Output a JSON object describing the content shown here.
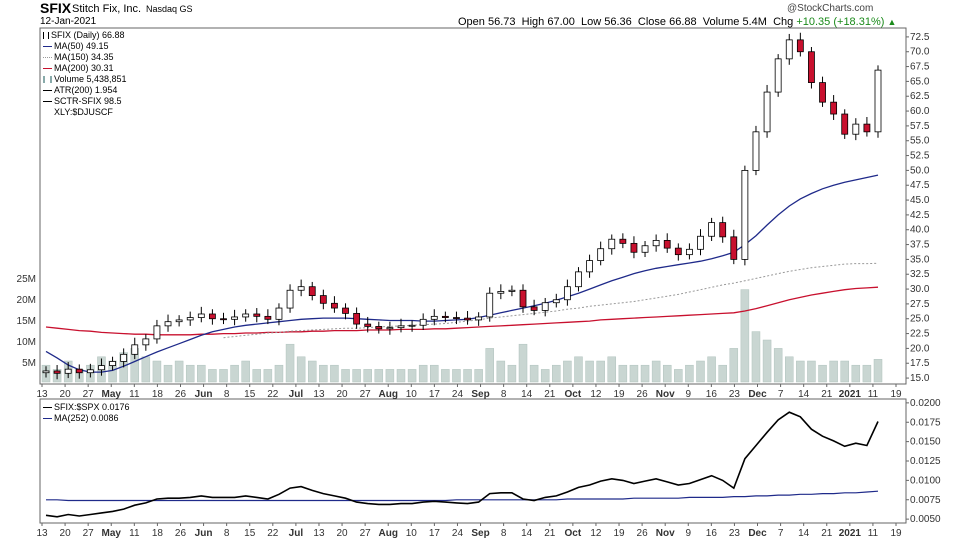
{
  "header": {
    "symbol": "SFIX",
    "company": "Stitch Fix, Inc.",
    "exchange": "Nasdaq GS",
    "date": "12-Jan-2021",
    "watermark": "@StockCharts.com",
    "open_label": "Open",
    "open": "56.73",
    "high_label": "High",
    "high": "67.00",
    "low_label": "Low",
    "low": "56.36",
    "close_label": "Close",
    "close": "66.88",
    "volume_label": "Volume",
    "volume": "5.4M",
    "chg_label": "Chg",
    "chg": "+10.35 (+18.31%)",
    "up_marker": "▲"
  },
  "legend_main": [
    {
      "text": "SFIX (Daily) 66.88",
      "color": "#000000",
      "style": "candle"
    },
    {
      "text": "MA(50) 49.15",
      "color": "#1f2a8a",
      "style": "solid"
    },
    {
      "text": "MA(150) 34.35",
      "color": "#999999",
      "style": "dotted"
    },
    {
      "text": "MA(200) 30.31",
      "color": "#c8102e",
      "style": "solid"
    },
    {
      "text": "Volume 5,438,851",
      "color": "#8aa",
      "style": "volume"
    },
    {
      "text": "ATR(200) 1.954",
      "color": "#000000",
      "style": "solid"
    },
    {
      "text": "SCTR-SFIX 98.5",
      "color": "#000000",
      "style": "solid"
    },
    {
      "text": "XLY:$DJUSCF",
      "color": "#000000",
      "style": "none"
    }
  ],
  "legend_lower": [
    {
      "text": "SFIX:$SPX 0.0176",
      "color": "#000000",
      "style": "solid"
    },
    {
      "text": "MA(252) 0.0086",
      "color": "#1f2a8a",
      "style": "solid"
    }
  ],
  "chart_data": [
    {
      "type": "candlestick",
      "title": "SFIX (Daily)",
      "ylim": [
        14,
        74
      ],
      "y_ticks": [
        "72.5",
        "70.0",
        "67.5",
        "65.0",
        "62.5",
        "60.0",
        "57.5",
        "55.0",
        "52.5",
        "50.0",
        "47.5",
        "45.0",
        "42.5",
        "40.0",
        "37.5",
        "35.0",
        "32.5",
        "30.0",
        "27.5",
        "25.0",
        "22.5",
        "20.0",
        "17.5",
        "15.0"
      ],
      "volume_ticks": [
        "25M",
        "20M",
        "15M",
        "10M",
        "5M"
      ],
      "x_ticks": [
        "13",
        "20",
        "27",
        "May",
        "11",
        "18",
        "26",
        "Jun",
        "8",
        "15",
        "22",
        "Jul",
        "13",
        "20",
        "27",
        "Aug",
        "10",
        "17",
        "24",
        "Sep",
        "8",
        "14",
        "21",
        "Oct",
        "12",
        "19",
        "26",
        "Nov",
        "9",
        "16",
        "23",
        "Dec",
        "7",
        "14",
        "21",
        "2021",
        "11",
        "19"
      ],
      "series": [
        {
          "name": "SFIX",
          "values": [
            16.2,
            15.8,
            16.5,
            15.9,
            16.4,
            17.1,
            17.8,
            19.0,
            20.6,
            21.6,
            23.8,
            24.5,
            24.8,
            25.2,
            25.8,
            25.0,
            24.9,
            25.3,
            25.8,
            25.4,
            24.9,
            26.8,
            29.8,
            30.4,
            28.9,
            27.6,
            26.8,
            25.9,
            24.1,
            23.7,
            23.3,
            23.5,
            23.8,
            23.9,
            24.9,
            25.4,
            25.2,
            25.1,
            24.8,
            25.3,
            29.3,
            29.6,
            29.8,
            27.0,
            26.4,
            27.7,
            28.2,
            30.4,
            32.9,
            34.8,
            36.8,
            38.4,
            37.7,
            36.2,
            37.3,
            38.2,
            36.9,
            35.8,
            36.7,
            38.9,
            41.2,
            38.8,
            35.0,
            50.0,
            56.5,
            63.2,
            68.8,
            72.0,
            70.0,
            64.8,
            61.5,
            59.5,
            56.1,
            57.8,
            56.5,
            66.9
          ]
        },
        {
          "name": "MA(50)",
          "values": [
            19.5,
            18.4,
            17.2,
            16.4,
            16.0,
            16.0,
            16.3,
            17.0,
            17.8,
            18.6,
            19.4,
            20.1,
            20.8,
            21.5,
            22.2,
            22.8,
            23.2,
            23.6,
            23.9,
            24.1,
            24.3,
            24.5,
            24.7,
            24.9,
            25.0,
            25.1,
            25.1,
            25.1,
            25.0,
            24.9,
            24.8,
            24.7,
            24.7,
            24.7,
            24.6,
            24.6,
            24.7,
            24.8,
            24.9,
            25.2,
            25.6,
            26.0,
            26.4,
            26.8,
            27.2,
            27.6,
            28.1,
            28.7,
            29.3,
            30.0,
            30.7,
            31.4,
            32.0,
            32.6,
            33.1,
            33.5,
            33.8,
            34.1,
            34.4,
            34.7,
            35.1,
            35.6,
            36.2,
            37.5,
            39.0,
            40.8,
            42.5,
            44.0,
            45.2,
            46.1,
            46.9,
            47.5,
            48.0,
            48.4,
            48.8,
            49.2
          ]
        },
        {
          "name": "MA(150)",
          "values": [
            null,
            null,
            null,
            null,
            null,
            null,
            null,
            null,
            null,
            null,
            null,
            null,
            null,
            null,
            null,
            null,
            21.8,
            22.0,
            22.2,
            22.4,
            22.6,
            22.7,
            22.9,
            23.0,
            23.1,
            23.2,
            23.3,
            23.4,
            23.4,
            23.5,
            23.6,
            23.7,
            23.8,
            23.9,
            24.0,
            24.1,
            24.2,
            24.4,
            24.6,
            24.8,
            25.1,
            25.3,
            25.5,
            25.7,
            25.9,
            26.1,
            26.3,
            26.6,
            26.8,
            27.1,
            27.3,
            27.5,
            27.7,
            27.9,
            28.2,
            28.5,
            28.8,
            29.1,
            29.5,
            29.9,
            30.3,
            30.7,
            31.0,
            31.4,
            31.8,
            32.2,
            32.6,
            33.0,
            33.3,
            33.6,
            33.8,
            34.0,
            34.2,
            34.3,
            34.3,
            34.35
          ]
        },
        {
          "name": "MA(200)",
          "values": [
            23.6,
            23.4,
            23.2,
            23.0,
            22.9,
            22.7,
            22.6,
            22.5,
            22.4,
            22.4,
            22.3,
            22.3,
            22.3,
            22.3,
            22.4,
            22.4,
            22.5,
            22.5,
            22.6,
            22.6,
            22.7,
            22.7,
            22.8,
            22.8,
            22.9,
            22.9,
            23.0,
            23.0,
            23.0,
            23.1,
            23.1,
            23.1,
            23.2,
            23.2,
            23.2,
            23.3,
            23.3,
            23.4,
            23.5,
            23.6,
            23.7,
            23.8,
            23.9,
            24.0,
            24.1,
            24.2,
            24.3,
            24.4,
            24.5,
            24.6,
            24.8,
            24.9,
            25.0,
            25.1,
            25.2,
            25.3,
            25.4,
            25.5,
            25.6,
            25.7,
            25.8,
            25.9,
            26.0,
            26.3,
            26.7,
            27.2,
            27.7,
            28.2,
            28.6,
            29.0,
            29.3,
            29.6,
            29.9,
            30.1,
            30.2,
            30.31
          ]
        }
      ],
      "volume": [
        4,
        3,
        5,
        3,
        4,
        6,
        5,
        7,
        8,
        6,
        5,
        4,
        5,
        4,
        4,
        3,
        3,
        4,
        5,
        3,
        3,
        4,
        9,
        6,
        5,
        4,
        4,
        3,
        3,
        3,
        3,
        3,
        3,
        3,
        4,
        4,
        3,
        3,
        3,
        3,
        8,
        5,
        4,
        9,
        4,
        3,
        4,
        5,
        6,
        5,
        5,
        6,
        4,
        4,
        4,
        5,
        4,
        3,
        4,
        5,
        6,
        4,
        8,
        22,
        12,
        10,
        8,
        6,
        5,
        5,
        4,
        5,
        5,
        4,
        4,
        5.4
      ]
    },
    {
      "type": "line",
      "title": "SFIX:$SPX",
      "ylim": [
        0.0045,
        0.0205
      ],
      "y_ticks": [
        "0.0200",
        "0.0175",
        "0.0150",
        "0.0125",
        "0.0100",
        "0.0075",
        "0.0050"
      ],
      "series": [
        {
          "name": "SFIX:$SPX",
          "values": [
            0.0055,
            0.0053,
            0.0056,
            0.0054,
            0.0056,
            0.0058,
            0.006,
            0.0063,
            0.0068,
            0.0071,
            0.0076,
            0.0077,
            0.0077,
            0.0078,
            0.008,
            0.0078,
            0.0078,
            0.0078,
            0.008,
            0.0078,
            0.0076,
            0.0082,
            0.009,
            0.0092,
            0.0087,
            0.0083,
            0.008,
            0.0077,
            0.0072,
            0.007,
            0.0069,
            0.0069,
            0.007,
            0.007,
            0.0072,
            0.0073,
            0.0072,
            0.0071,
            0.007,
            0.0072,
            0.0083,
            0.0084,
            0.0084,
            0.0076,
            0.0074,
            0.0078,
            0.008,
            0.0085,
            0.0091,
            0.0094,
            0.0099,
            0.0102,
            0.01,
            0.0096,
            0.0099,
            0.0102,
            0.0098,
            0.0094,
            0.0096,
            0.0101,
            0.0106,
            0.01,
            0.009,
            0.0128,
            0.0145,
            0.0162,
            0.0178,
            0.0188,
            0.0182,
            0.0166,
            0.0157,
            0.0151,
            0.0144,
            0.0148,
            0.0145,
            0.0176
          ]
        },
        {
          "name": "MA(252)",
          "values": [
            0.0075,
            0.0075,
            0.0074,
            0.0074,
            0.0074,
            0.0074,
            0.0074,
            0.0074,
            0.0074,
            0.0074,
            0.0074,
            0.0074,
            0.0074,
            0.0074,
            0.0074,
            0.0074,
            0.0074,
            0.0074,
            0.0074,
            0.0074,
            0.0074,
            0.0074,
            0.0074,
            0.0074,
            0.0074,
            0.0074,
            0.0074,
            0.0074,
            0.0074,
            0.0074,
            0.0074,
            0.0074,
            0.0074,
            0.0074,
            0.0074,
            0.0074,
            0.0074,
            0.0075,
            0.0075,
            0.0075,
            0.0075,
            0.0075,
            0.0075,
            0.0075,
            0.0075,
            0.0075,
            0.0075,
            0.0076,
            0.0076,
            0.0076,
            0.0076,
            0.0076,
            0.0076,
            0.0077,
            0.0077,
            0.0077,
            0.0077,
            0.0077,
            0.0078,
            0.0078,
            0.0078,
            0.0078,
            0.0079,
            0.0079,
            0.008,
            0.008,
            0.0081,
            0.0081,
            0.0082,
            0.0082,
            0.0083,
            0.0083,
            0.0084,
            0.0084,
            0.0085,
            0.0086
          ]
        }
      ]
    }
  ]
}
